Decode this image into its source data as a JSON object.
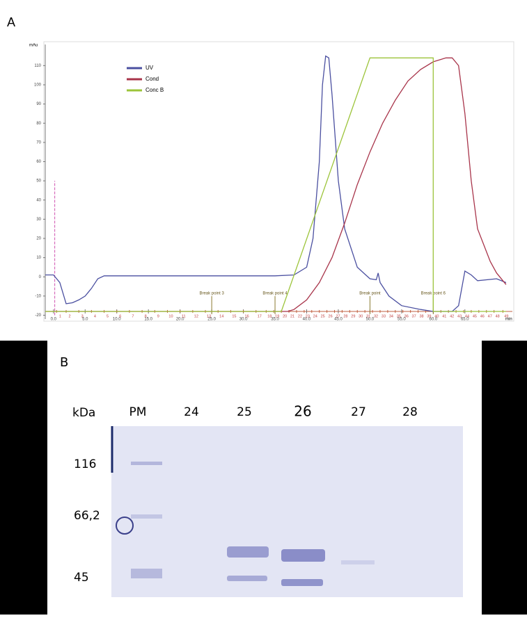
{
  "panel_a_label": "A",
  "chart_data": {
    "type": "line",
    "y_label": "mAu",
    "x_label": "min",
    "xlim": [
      -1.3,
      72.5
    ],
    "ylim": [
      -22,
      121
    ],
    "xticks": [
      {
        "value": 0,
        "label": "0.0"
      },
      {
        "value": 5,
        "label": "5.0"
      },
      {
        "value": 10,
        "label": "10.0"
      },
      {
        "value": 15,
        "label": "15.0"
      },
      {
        "value": 20,
        "label": "20.0"
      },
      {
        "value": 25,
        "label": "25.0"
      },
      {
        "value": 30,
        "label": "30.0"
      },
      {
        "value": 35,
        "label": "35.0"
      },
      {
        "value": 40,
        "label": "40.0"
      },
      {
        "value": 45,
        "label": "45.0"
      },
      {
        "value": 50,
        "label": "50.0"
      },
      {
        "value": 55,
        "label": "55.0"
      },
      {
        "value": 60,
        "label": "60.0"
      },
      {
        "value": 65,
        "label": "65.0"
      }
    ],
    "yticks": [
      -20,
      -10,
      0,
      10,
      20,
      30,
      40,
      50,
      60,
      70,
      80,
      90,
      100,
      110
    ],
    "legend": "top-left",
    "series": [
      {
        "name": "UV",
        "color": "#4a4fa0",
        "x": [
          -1.3,
          0,
          1,
          2,
          3,
          4,
          5,
          6,
          7,
          8,
          10,
          20,
          30,
          35,
          38,
          40,
          41,
          42,
          42.5,
          43,
          43.5,
          44,
          45,
          46,
          48,
          50,
          51,
          51.3,
          51.6,
          53,
          55,
          58,
          60,
          63,
          64,
          65,
          66,
          67,
          70,
          71.5
        ],
        "values": [
          1,
          1,
          -3,
          -14,
          -13.5,
          -12,
          -10,
          -6,
          -1,
          0.5,
          0.5,
          0.5,
          0.5,
          0.5,
          1,
          5,
          20,
          60,
          100,
          115,
          114,
          95,
          50,
          25,
          5,
          -1,
          -1.5,
          2,
          -3,
          -10,
          -15,
          -17,
          -18,
          -18,
          -15,
          3,
          1,
          -2,
          -1,
          -3
        ]
      },
      {
        "name": "Cond",
        "color": "#a8344a",
        "x": [
          -1.3,
          37,
          38,
          40,
          42,
          44,
          46,
          48,
          50,
          52,
          54,
          56,
          58,
          60,
          62,
          63,
          64,
          65,
          66,
          67,
          69,
          70,
          71.5
        ],
        "values": [
          -18,
          -18,
          -17,
          -12,
          -3,
          10,
          28,
          48,
          65,
          80,
          92,
          102,
          108,
          112,
          114,
          114,
          110,
          85,
          50,
          25,
          8,
          2,
          -4
        ]
      },
      {
        "name": "Conc B",
        "color": "#9cc43a",
        "x": [
          -1.3,
          36,
          50,
          60,
          60,
          71.5
        ],
        "values": [
          -18,
          -18,
          114,
          114,
          -18,
          -18
        ]
      }
    ],
    "injection": {
      "x": 0.2,
      "y": [
        -20,
        50
      ]
    },
    "break_points": [
      {
        "x": 25,
        "label": "Break point 3"
      },
      {
        "x": 35,
        "label": "Break point 4"
      },
      {
        "x": 50,
        "label": "Break point"
      },
      {
        "x": 60,
        "label": "Break point 6"
      }
    ],
    "fractions": [
      {
        "value": 0.5,
        "label": "1"
      },
      {
        "value": 2,
        "label": "2"
      },
      {
        "value": 4,
        "label": "3"
      },
      {
        "value": 6,
        "label": "4"
      },
      {
        "value": 8,
        "label": "5"
      },
      {
        "value": 10,
        "label": "6"
      },
      {
        "value": 12,
        "label": "7"
      },
      {
        "value": 14,
        "label": "8"
      },
      {
        "value": 16,
        "label": "9"
      },
      {
        "value": 18,
        "label": "10"
      },
      {
        "value": 20,
        "label": "11"
      },
      {
        "value": 22,
        "label": "12"
      },
      {
        "value": 24,
        "label": "13"
      },
      {
        "value": 26,
        "label": "14"
      },
      {
        "value": 28,
        "label": "15"
      },
      {
        "value": 30,
        "label": "16"
      },
      {
        "value": 32,
        "label": "17"
      },
      {
        "value": 33.6,
        "label": "18"
      },
      {
        "value": 34.8,
        "label": "19"
      },
      {
        "value": 36,
        "label": "20"
      },
      {
        "value": 37.2,
        "label": "21"
      },
      {
        "value": 38.4,
        "label": "22"
      },
      {
        "value": 39.6,
        "label": "23"
      },
      {
        "value": 40.8,
        "label": "24"
      },
      {
        "value": 42,
        "label": "25"
      },
      {
        "value": 43.2,
        "label": "26"
      },
      {
        "value": 44.4,
        "label": "27"
      },
      {
        "value": 45.6,
        "label": "28"
      },
      {
        "value": 46.8,
        "label": "29"
      },
      {
        "value": 48,
        "label": "30"
      },
      {
        "value": 49.2,
        "label": "31"
      },
      {
        "value": 50.4,
        "label": "32"
      },
      {
        "value": 51.6,
        "label": "33"
      },
      {
        "value": 52.8,
        "label": "34"
      },
      {
        "value": 54,
        "label": "35"
      },
      {
        "value": 55.2,
        "label": "36"
      },
      {
        "value": 56.4,
        "label": "37"
      },
      {
        "value": 57.6,
        "label": "38"
      },
      {
        "value": 58.8,
        "label": "39"
      },
      {
        "value": 60,
        "label": "40"
      },
      {
        "value": 61.2,
        "label": "41"
      },
      {
        "value": 62.4,
        "label": "42"
      },
      {
        "value": 63.6,
        "label": "43"
      },
      {
        "value": 64.8,
        "label": "44"
      },
      {
        "value": 66,
        "label": "45"
      },
      {
        "value": 67.2,
        "label": "46"
      },
      {
        "value": 68.4,
        "label": "47"
      },
      {
        "value": 69.6,
        "label": "48"
      },
      {
        "value": 71,
        "label": "49"
      }
    ]
  },
  "gel": {
    "label": "B",
    "unit": "kDa",
    "lanes": [
      "PM",
      "24",
      "25",
      "26",
      "27",
      "28"
    ],
    "markers": [
      "116",
      "66,2",
      "45"
    ]
  }
}
